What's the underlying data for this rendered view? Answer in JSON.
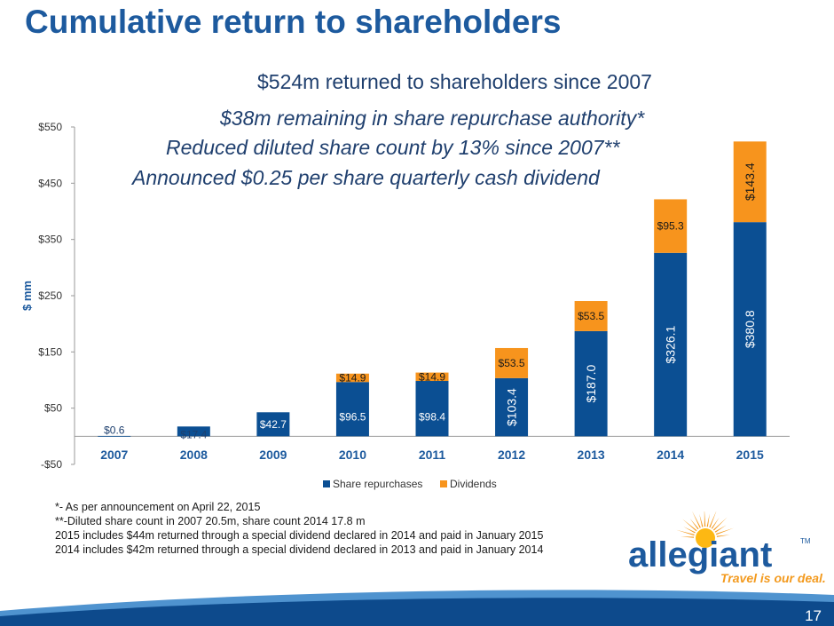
{
  "slide": {
    "title": "Cumulative return to shareholders",
    "headlines": [
      "$524m returned to shareholders since 2007",
      "$38m remaining in share repurchase authority*",
      "Reduced diluted share count by 13% since 2007**",
      "Announced $0.25 per share quarterly cash dividend"
    ],
    "footnotes": [
      "*- As per announcement on April 22, 2015",
      "**-Diluted share count in 2007 20.5m, share count 2014 17.8 m",
      "2015 includes $44m returned through a special dividend declared in 2014 and paid in January 2015",
      "2014 includes $42m returned through a special dividend declared in 2013 and paid in January 2014"
    ],
    "page_number": "17"
  },
  "logo": {
    "wordmark": "allegiant",
    "tagline": "Travel is our deal.",
    "trademark": "TM"
  },
  "colors": {
    "title": "#1d5a9e",
    "share_repurchases": "#0b4f93",
    "dividends": "#f7941d",
    "band_dark": "#0d4a8c",
    "band_light": "#4f93cf",
    "logo_orange": "#f39a1e"
  },
  "chart_data": {
    "type": "bar",
    "stacked": true,
    "title": "",
    "xlabel": "",
    "ylabel": "$ mm",
    "ylim": [
      -50,
      550
    ],
    "yticks": [
      -50,
      50,
      150,
      250,
      350,
      450,
      550
    ],
    "ytick_labels": [
      "-$50",
      "$50",
      "$150",
      "$250",
      "$350",
      "$450",
      "$550"
    ],
    "categories": [
      "2007",
      "2008",
      "2009",
      "2010",
      "2011",
      "2012",
      "2013",
      "2014",
      "2015"
    ],
    "series": [
      {
        "name": "Share repurchases",
        "values": [
          0.6,
          17.4,
          42.7,
          96.5,
          98.4,
          103.4,
          187.0,
          326.1,
          380.8
        ],
        "labels": [
          "$0.6",
          "$17.4",
          "$42.7",
          "$96.5",
          "$98.4",
          "$103.4",
          "$187.0",
          "$326.1",
          "$380.8"
        ]
      },
      {
        "name": "Dividends",
        "values": [
          0,
          0,
          0,
          14.9,
          14.9,
          53.5,
          53.5,
          95.3,
          143.4
        ],
        "labels": [
          "",
          "",
          "",
          "$14.9",
          "$14.9",
          "$53.5",
          "$53.5",
          "$95.3",
          "$143.4"
        ]
      }
    ],
    "legend": [
      "Share repurchases",
      "Dividends"
    ],
    "legend_position": "bottom"
  }
}
